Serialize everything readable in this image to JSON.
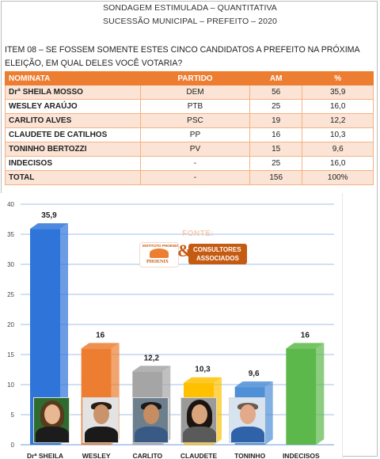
{
  "header": {
    "line1": "SONDAGEM ESTIMULADA – QUANTITATIVA",
    "line2": "SUCESSÃO MUNICIPAL – PREFEITO – 2020"
  },
  "question": "ITEM 08 – SE FOSSEM SOMENTE ESTES CINCO CANDIDATOS A PREFEITO NA PRÓXIMA ELEIÇÃO, EM QUAL DELES VOCÊ VOTARIA?",
  "table": {
    "headers": [
      "NOMINATA",
      "PARTIDO",
      "AM",
      "%"
    ],
    "rows": [
      {
        "name": "Drª SHEILA MOSSO",
        "party": "DEM",
        "am": "56",
        "pct": "35,9"
      },
      {
        "name": "WESLEY ARAÚJO",
        "party": "PTB",
        "am": "25",
        "pct": "16,0"
      },
      {
        "name": "CARLITO ALVES",
        "party": "PSC",
        "am": "19",
        "pct": "12,2"
      },
      {
        "name": "CLAUDETE DE CATILHOS",
        "party": "PP",
        "am": "16",
        "pct": "10,3"
      },
      {
        "name": "TONINHO BERTOZZI",
        "party": "PV",
        "am": "15",
        "pct": "9,6"
      },
      {
        "name": "INDECISOS",
        "party": "-",
        "am": "25",
        "pct": "16,0"
      },
      {
        "name": "TOTAL",
        "party": "-",
        "am": "156",
        "pct": "100%"
      }
    ]
  },
  "logo": {
    "fonte": "FONTE:",
    "bird_top": "INSTITUTO PHOENIX",
    "bird_bottom": "PHOENIX",
    "amp": "&",
    "line1": "CONSULTORES",
    "line2": "ASSOCIADOS"
  },
  "chart_data": {
    "type": "bar",
    "categories": [
      "Drª SHEILA",
      "WESLEY",
      "CARLITO",
      "CLAUDETE",
      "TONINHO",
      "INDECISOS"
    ],
    "values": [
      35.9,
      16,
      12.2,
      10.3,
      9.6,
      16
    ],
    "value_labels": [
      "35,9",
      "16",
      "12,2",
      "10,3",
      "9,6",
      "16"
    ],
    "colors": [
      "#2e74d9",
      "#ed7d31",
      "#a5a5a5",
      "#ffc000",
      "#4f8fd6",
      "#5cb84a"
    ],
    "yticks": [
      "0",
      "5",
      "10",
      "15",
      "20",
      "25",
      "30",
      "35",
      "40"
    ],
    "ylim": [
      0,
      40
    ],
    "grid": true
  }
}
